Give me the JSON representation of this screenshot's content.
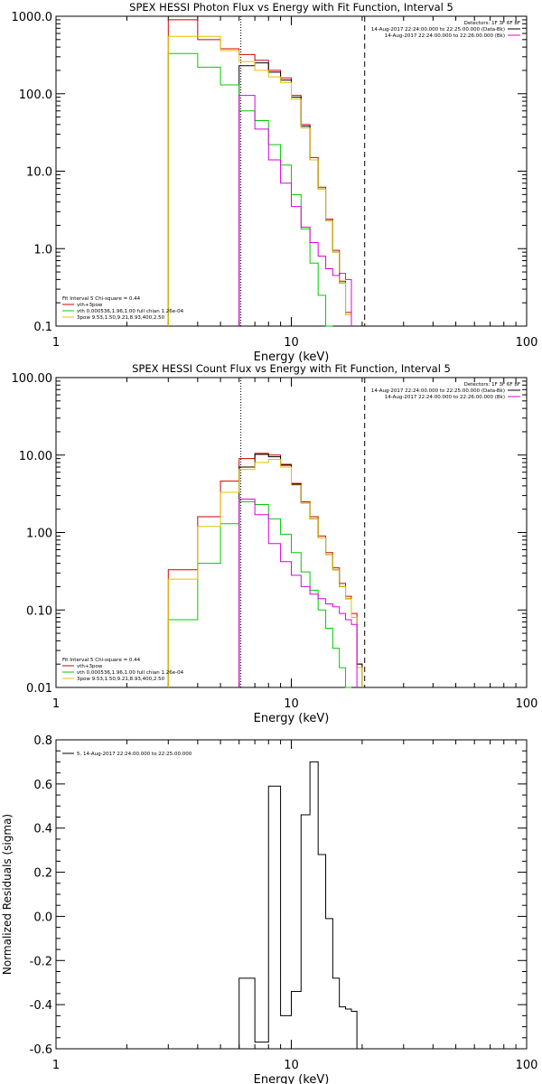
{
  "chart_data": [
    {
      "type": "line",
      "title": "SPEX HESSI Photon Flux vs Energy with Fit Function, Interval 5",
      "xlabel": "Energy (keV)",
      "ylabel": "",
      "xscale": "log",
      "yscale": "log",
      "xlim": [
        1,
        100
      ],
      "ylim": [
        0.1,
        1000
      ],
      "xtick_labels": [
        "1",
        "10",
        "100"
      ],
      "ytick_labels": [
        "0.1",
        "1.0",
        "10.0",
        "100.0",
        "1000.0"
      ],
      "edges": [
        3,
        4,
        5,
        6,
        7,
        8,
        9,
        10,
        11,
        12,
        13,
        14,
        15,
        16,
        17,
        18,
        19,
        20
      ],
      "vlines": [
        {
          "x": 6.1,
          "style": "dotted",
          "color": "#000000"
        },
        {
          "x": 20.5,
          "style": "dashed",
          "color": "#000000"
        }
      ],
      "series": [
        {
          "name": "vth+3pow",
          "color": "#d00000",
          "values": [
            900,
            500,
            380,
            320,
            270,
            200,
            160,
            95,
            40,
            15,
            6.2,
            2.4,
            0.95,
            0.38,
            0.15,
            null,
            null
          ]
        },
        {
          "name": "",
          "color": "#000000",
          "values": [
            null,
            null,
            null,
            230,
            250,
            190,
            150,
            90,
            38,
            14,
            5.9,
            2.3,
            0.9,
            0.36,
            0.14,
            null,
            null
          ]
        },
        {
          "name": "vth 0.000536,1.96,1.00  full chian 1.26e-04",
          "color": "#00cc00",
          "values": [
            330,
            220,
            130,
            60,
            45,
            22,
            12,
            5,
            1.8,
            0.65,
            0.25,
            0.1,
            null,
            null,
            null,
            null,
            null
          ]
        },
        {
          "name": "3pow 9.53,1.50,9.21,8.93,400,2.50",
          "color": "#e6c000",
          "values": [
            550,
            550,
            360,
            260,
            200,
            165,
            140,
            85,
            36,
            14,
            5.9,
            2.3,
            0.9,
            0.36,
            0.14,
            null,
            null
          ]
        },
        {
          "name": "",
          "color": "#e000e0",
          "values": [
            null,
            null,
            null,
            95,
            35,
            14,
            7,
            3.5,
            1.9,
            1.2,
            0.8,
            0.55,
            0.45,
            0.48,
            0.4,
            null,
            null
          ]
        }
      ],
      "legend": {
        "placement": "lower-left",
        "lines": [
          "Fit Interval 5   Chi-square = 0.44",
          "vth+3pow",
          "vth 0.000536,1.96,1.00  full chian 1.26e-04",
          "3pow 9.53,1.50,9.21,8.93,400,2.50"
        ]
      },
      "legend_right": {
        "placement": "top-right",
        "lines": [
          "Detectors: 1F 3F 6F 8F",
          "14-Aug-2017 22:24:00.000 to 22:25:00.000 (Data-Bk)",
          "14-Aug-2017 22:24:00.000 to 22:26:00.000 (Bk)"
        ]
      }
    },
    {
      "type": "line",
      "title": "SPEX HESSI Count Flux vs Energy with Fit Function, Interval 5",
      "xlabel": "Energy (keV)",
      "ylabel": "",
      "xscale": "log",
      "yscale": "log",
      "xlim": [
        1,
        100
      ],
      "ylim": [
        0.01,
        100
      ],
      "xtick_labels": [
        "1",
        "10",
        "100"
      ],
      "ytick_labels": [
        "0.01",
        "0.10",
        "1.00",
        "10.00",
        "100.00"
      ],
      "edges": [
        3,
        4,
        5,
        6,
        7,
        8,
        9,
        10,
        11,
        12,
        13,
        14,
        15,
        16,
        17,
        18,
        19,
        20
      ],
      "vlines": [
        {
          "x": 6.1,
          "style": "dotted",
          "color": "#000000"
        },
        {
          "x": 20.5,
          "style": "dashed",
          "color": "#000000"
        }
      ],
      "series": [
        {
          "name": "vth+3pow",
          "color": "#d00000",
          "values": [
            0.33,
            1.6,
            4.6,
            9.0,
            10.5,
            10.0,
            7.6,
            4.3,
            2.5,
            1.6,
            0.9,
            0.55,
            0.35,
            0.22,
            0.15,
            0.09,
            0.02
          ]
        },
        {
          "name": "",
          "color": "#000000",
          "values": [
            null,
            null,
            null,
            7.0,
            10.2,
            9.5,
            7.4,
            4.2,
            2.4,
            1.5,
            0.85,
            0.52,
            0.33,
            0.2,
            0.14,
            0.08,
            0.02
          ]
        },
        {
          "name": "vth 0.000536,1.96,1.00  full chian 1.26e-04",
          "color": "#00cc00",
          "values": [
            0.075,
            0.4,
            1.3,
            2.5,
            2.3,
            1.5,
            0.95,
            0.55,
            0.31,
            0.18,
            0.1,
            0.058,
            0.032,
            0.018,
            0.01,
            null,
            null
          ]
        },
        {
          "name": "3pow 9.53,1.50,9.21,8.93,400,2.50",
          "color": "#e6c000",
          "values": [
            0.25,
            1.2,
            3.3,
            6.5,
            8.0,
            8.8,
            7.0,
            4.1,
            2.4,
            1.5,
            0.85,
            0.52,
            0.33,
            0.2,
            0.14,
            0.08,
            0.018
          ]
        },
        {
          "name": "",
          "color": "#e000e0",
          "values": [
            null,
            null,
            null,
            2.7,
            1.7,
            0.72,
            0.42,
            0.28,
            0.2,
            0.16,
            0.14,
            0.12,
            0.11,
            0.09,
            0.075,
            0.065,
            null
          ]
        }
      ],
      "legend": {
        "placement": "lower-left",
        "lines": [
          "Fit Interval 5   Chi-square = 0.44",
          "vth+3pow",
          "vth 0.000536,1.96,1.00  full chian 1.26e-04",
          "3pow 9.53,1.50,9.21,8.93,400,2.50"
        ]
      },
      "legend_right": {
        "placement": "top-right",
        "lines": [
          "Detectors: 1F 3F 6F 8F",
          "14-Aug-2017 22:24:00.000 to 22:25:00.000 (Data-Bk)",
          "14-Aug-2017 22:24:00.000 to 22:26:00.000 (Bk)"
        ]
      }
    },
    {
      "type": "line",
      "title": "",
      "xlabel": "Energy (keV)",
      "ylabel": "Normalized Residuals (sigma)",
      "xscale": "log",
      "yscale": "linear",
      "xlim": [
        1,
        100
      ],
      "ylim": [
        -0.6,
        0.8
      ],
      "xtick_labels": [
        "1",
        "10",
        "100"
      ],
      "ytick_labels": [
        "-0.6",
        "-0.4",
        "-0.2",
        "0.0",
        "0.2",
        "0.4",
        "0.6",
        "0.8"
      ],
      "edges": [
        6,
        7,
        8,
        9,
        10,
        11,
        12,
        13,
        14,
        15,
        16,
        17,
        18,
        19,
        20
      ],
      "vlines": [],
      "series": [
        {
          "name": "5, 14-Aug-2017 22:24:00.000 to 22:25:00.000",
          "color": "#000000",
          "values": [
            -0.28,
            -0.57,
            0.59,
            -0.45,
            -0.34,
            0.46,
            0.7,
            0.28,
            -0.01,
            -0.28,
            -0.41,
            -0.42,
            -0.43,
            -0.6
          ]
        }
      ],
      "legend": {
        "placement": "top-left",
        "lines": [
          "5, 14-Aug-2017 22:24:00.000 to 22:25:00.000"
        ]
      },
      "legend_right": null
    }
  ]
}
